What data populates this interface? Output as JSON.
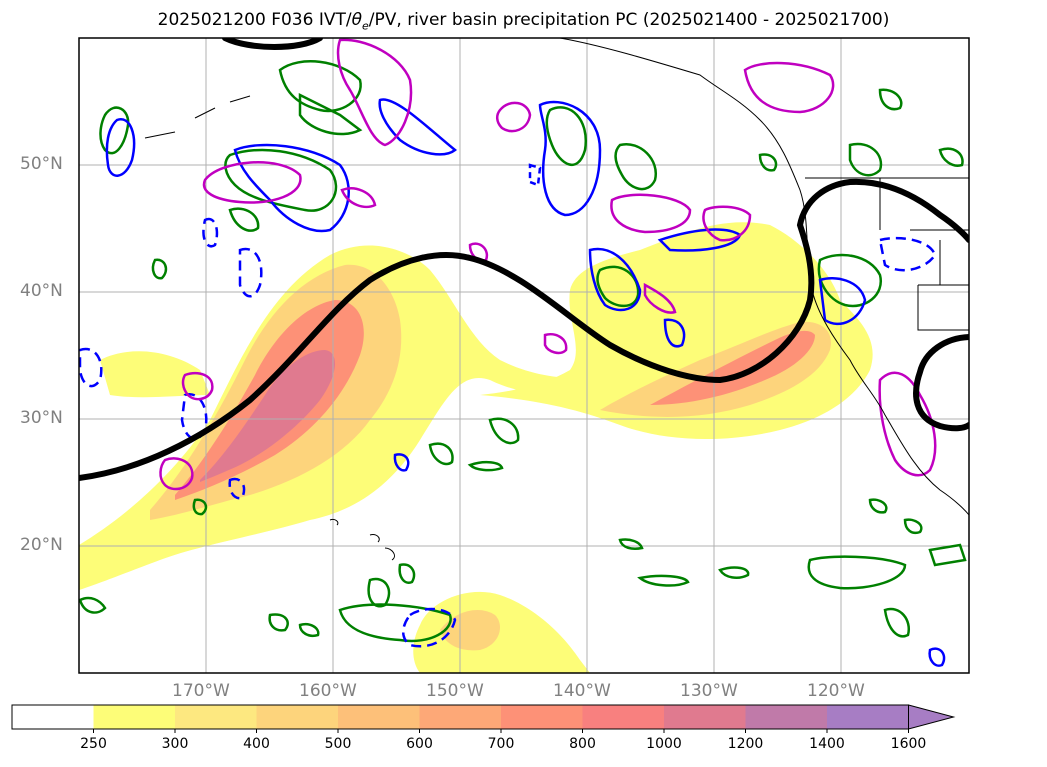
{
  "title_main": "2025021200 F036 IVT/",
  "title_theta": "θ",
  "title_theta_sub": "e",
  "title_rest": "/PV, river basin precipitation PC (2025021400 - 2025021700)",
  "lat_labels": [
    "50°N",
    "40°N",
    "30°N",
    "20°N"
  ],
  "lon_labels": [
    "170°W",
    "160°W",
    "150°W",
    "140°W",
    "130°W",
    "120°W"
  ],
  "colorbar": {
    "labels": [
      "250",
      "300",
      "400",
      "500",
      "600",
      "700",
      "800",
      "1000",
      "1200",
      "1400",
      "1600"
    ],
    "colors": [
      "#ffffff",
      "#fdfd78",
      "#fde880",
      "#fdd47c",
      "#fdc079",
      "#fda877",
      "#fd9177",
      "#f8807f",
      "#e07a8f",
      "#c07aa9",
      "#a77dc4"
    ],
    "extend": "max"
  },
  "colors": {
    "ivt_low": "#fdfd78",
    "ivt_mid": "#fdd47c",
    "ivt_high": "#fd9177",
    "ivt_max": "#e07a8f",
    "pv_contour": "#000000",
    "theta_e_pos": "#008000",
    "theta_e_neg": "#0000ff",
    "river_basin": "#c000c0",
    "grid": "#b0b0b0",
    "coast": "#000000"
  }
}
